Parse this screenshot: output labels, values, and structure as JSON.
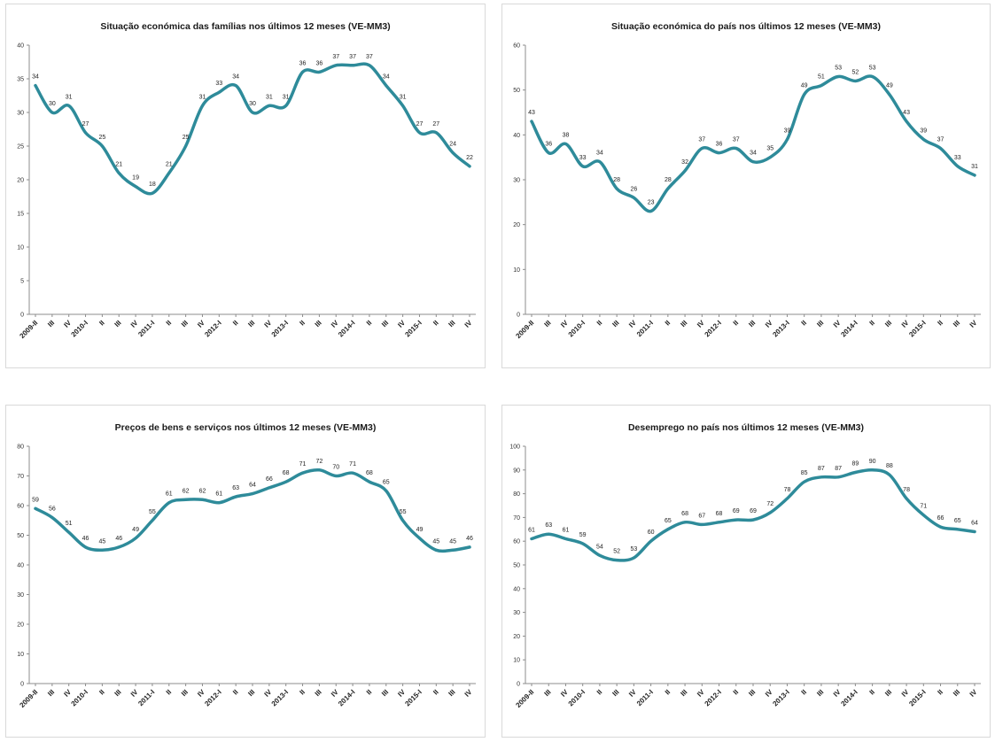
{
  "chart_data": [
    {
      "type": "line",
      "title": "Situação económica das famílias nos últimos 12 meses  (VE-MM3)",
      "categories": [
        "2009-II",
        "III",
        "IV",
        "2010-I",
        "II",
        "III",
        "IV",
        "2011-I",
        "II",
        "III",
        "IV",
        "2012-I",
        "II",
        "III",
        "IV",
        "2013-I",
        "II",
        "III",
        "IV",
        "2014-I",
        "II",
        "III",
        "IV",
        "2015-I",
        "II",
        "III",
        "IV"
      ],
      "values": [
        34,
        30,
        31,
        27,
        25,
        21,
        19,
        18,
        21,
        25,
        31,
        33,
        34,
        30,
        31,
        31,
        36,
        36,
        37,
        37,
        37,
        34,
        31,
        27,
        27,
        24,
        22
      ],
      "ylim": [
        0,
        40
      ],
      "yticks": [
        0,
        5,
        10,
        15,
        20,
        25,
        30,
        35,
        40
      ],
      "color": "#2e8b9a",
      "grid": false
    },
    {
      "type": "line",
      "title": "Situação económica do país nos últimos 12 meses  (VE-MM3)",
      "categories": [
        "2009-II",
        "III",
        "IV",
        "2010-I",
        "II",
        "III",
        "IV",
        "2011-I",
        "II",
        "III",
        "IV",
        "2012-I",
        "II",
        "III",
        "IV",
        "2013-I",
        "II",
        "III",
        "IV",
        "2014-I",
        "II",
        "III",
        "IV",
        "2015-I",
        "II",
        "III",
        "IV"
      ],
      "values": [
        43,
        36,
        38,
        33,
        34,
        28,
        26,
        23,
        28,
        32,
        37,
        36,
        37,
        34,
        35,
        39,
        49,
        51,
        53,
        52,
        53,
        49,
        43,
        39,
        37,
        33,
        31
      ],
      "ylim": [
        0,
        60
      ],
      "yticks": [
        0,
        10,
        20,
        30,
        40,
        50,
        60
      ],
      "color": "#2e8b9a",
      "grid": false
    },
    {
      "type": "line",
      "title": "Preços de bens e serviços nos últimos 12 meses  (VE-MM3)",
      "categories": [
        "2009-II",
        "III",
        "IV",
        "2010-I",
        "II",
        "III",
        "IV",
        "2011-I",
        "II",
        "III",
        "IV",
        "2012-I",
        "II",
        "III",
        "IV",
        "2013-I",
        "II",
        "III",
        "IV",
        "2014-I",
        "II",
        "III",
        "IV",
        "2015-I",
        "II",
        "III",
        "IV"
      ],
      "values": [
        59,
        56,
        51,
        46,
        45,
        46,
        49,
        55,
        61,
        62,
        62,
        61,
        63,
        64,
        66,
        68,
        71,
        72,
        70,
        71,
        68,
        65,
        55,
        49,
        45,
        45,
        46
      ],
      "ylim": [
        0,
        80
      ],
      "yticks": [
        0,
        10,
        20,
        30,
        40,
        50,
        60,
        70,
        80
      ],
      "color": "#2e8b9a",
      "grid": false
    },
    {
      "type": "line",
      "title": "Desemprego no país nos últimos 12 meses  (VE-MM3)",
      "categories": [
        "2009-II",
        "III",
        "IV",
        "2010-I",
        "II",
        "III",
        "IV",
        "2011-I",
        "II",
        "III",
        "IV",
        "2012-I",
        "II",
        "III",
        "IV",
        "2013-I",
        "II",
        "III",
        "IV",
        "2014-I",
        "II",
        "III",
        "IV",
        "2015-I",
        "II",
        "III",
        "IV"
      ],
      "values": [
        61,
        63,
        61,
        59,
        54,
        52,
        53,
        60,
        65,
        68,
        67,
        68,
        69,
        69,
        72,
        78,
        85,
        87,
        87,
        89,
        90,
        88,
        78,
        71,
        66,
        65,
        64
      ],
      "ylim": [
        0,
        100
      ],
      "yticks": [
        0,
        10,
        20,
        30,
        40,
        50,
        60,
        70,
        80,
        90,
        100
      ],
      "color": "#2e8b9a",
      "grid": false
    }
  ]
}
